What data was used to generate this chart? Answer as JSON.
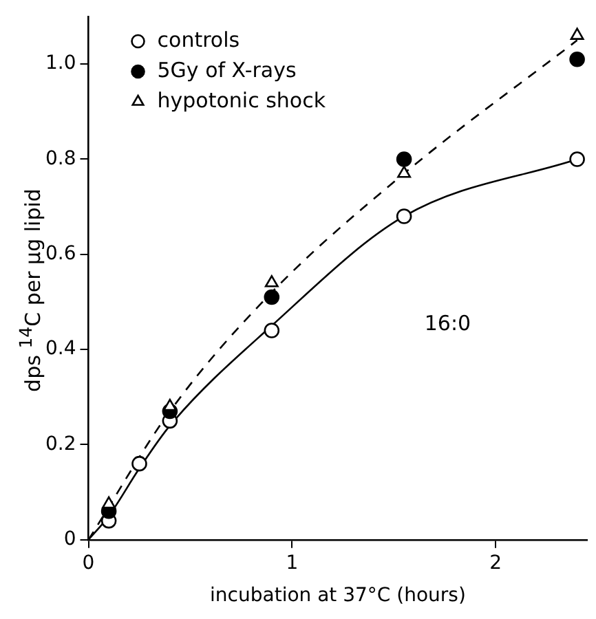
{
  "chart_data": {
    "type": "scatter",
    "xlabel": "incubation at 37°C (hours)",
    "ylabel": "dps $^{14}$C per µg lipid",
    "xlim": [
      0,
      2.45
    ],
    "xticks": [
      0,
      1,
      2
    ],
    "ylim": [
      0,
      1.1
    ],
    "yticks": [
      0,
      0.2,
      0.4,
      0.6,
      0.8,
      {
        "value": 1,
        "label": "1.0"
      }
    ],
    "grid": false,
    "legend": "top left",
    "annotations": [
      "16:0"
    ],
    "series": [
      {
        "name": "controls",
        "color": "#ffffff",
        "marker": "circle",
        "x": [
          0.1,
          0.25,
          0.4,
          0.9,
          1.55,
          2.4
        ],
        "values": [
          0.04,
          0.16,
          0.25,
          0.44,
          0.68,
          0.8
        ]
      },
      {
        "name": "5Gy of X-rays",
        "color": "#000000",
        "marker": "circle",
        "x": [
          0.1,
          0.4,
          0.9,
          1.55,
          2.4
        ],
        "values": [
          0.06,
          0.27,
          0.51,
          0.8,
          1.01
        ]
      },
      {
        "name": "hypotonic shock",
        "color": "#ffffff",
        "marker": "triangle",
        "x": [
          0.1,
          0.4,
          0.9,
          1.55,
          2.4
        ],
        "values": [
          0.075,
          0.28,
          0.54,
          0.77,
          1.06
        ]
      },
      {
        "type": "line",
        "color": "#000000",
        "line_style": "solid",
        "x": [
          0,
          0.1,
          0.25,
          0.4,
          0.9,
          1.55,
          2.4
        ],
        "values": [
          0,
          0.05,
          0.15,
          0.24,
          0.45,
          0.68,
          0.8
        ]
      },
      {
        "type": "line",
        "color": "#000000",
        "line_style": "dashed",
        "x": [
          0,
          0.4,
          0.9,
          1.55,
          2.4
        ],
        "values": [
          0,
          0.27,
          0.52,
          0.77,
          1.05
        ]
      }
    ]
  }
}
